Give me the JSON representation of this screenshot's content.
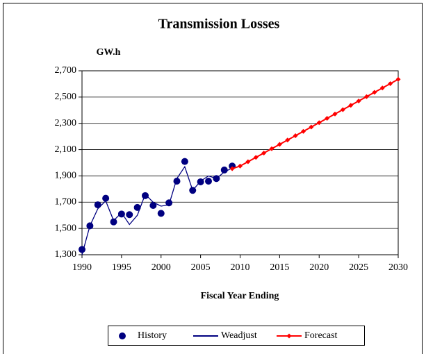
{
  "chart_data": {
    "type": "line",
    "title": "Transmission Losses",
    "y_label": "GW.h",
    "x_label": "Fiscal Year Ending",
    "xlim": [
      1990,
      2030
    ],
    "xticks": [
      1990,
      1995,
      2000,
      2005,
      2010,
      2015,
      2020,
      2025,
      2030
    ],
    "ylim": [
      1300,
      2700
    ],
    "yticks": [
      {
        "value": 1300,
        "label": "1,300"
      },
      {
        "value": 1500,
        "label": "1,500"
      },
      {
        "value": 1700,
        "label": "1,700"
      },
      {
        "value": 1900,
        "label": "1,900"
      },
      {
        "value": 2100,
        "label": "2,100"
      },
      {
        "value": 2300,
        "label": "2,300"
      },
      {
        "value": 2500,
        "label": "2,500"
      },
      {
        "value": 2700,
        "label": "2,700"
      }
    ],
    "grid": true,
    "legend": "bottom",
    "series": [
      {
        "name": "History",
        "color": "#000080",
        "line": false,
        "marker": "circle",
        "x": [
          1990,
          1991,
          1992,
          1993,
          1994,
          1995,
          1996,
          1997,
          1998,
          1999,
          2000,
          2001,
          2002,
          2003,
          2004,
          2005,
          2006,
          2007,
          2008,
          2009
        ],
        "values": [
          1340,
          1520,
          1680,
          1730,
          1550,
          1610,
          1605,
          1660,
          1750,
          1675,
          1615,
          1695,
          1860,
          2010,
          1790,
          1855,
          1860,
          1880,
          1945,
          1975
        ]
      },
      {
        "name": "Weadjust",
        "color": "#000080",
        "line": true,
        "marker": "none",
        "x": [
          1990,
          1991,
          1992,
          1993,
          1994,
          1995,
          1996,
          1997,
          1998,
          1999,
          2000,
          2001,
          2002,
          2003,
          2004,
          2005,
          2006,
          2007,
          2008,
          2009
        ],
        "values": [
          1300,
          1520,
          1650,
          1710,
          1560,
          1620,
          1530,
          1600,
          1760,
          1700,
          1670,
          1680,
          1880,
          1970,
          1790,
          1860,
          1900,
          1880,
          1930,
          1960
        ]
      },
      {
        "name": "Forecast",
        "color": "#ff0000",
        "line": true,
        "marker": "diamond",
        "x": [
          2009,
          2010,
          2011,
          2012,
          2013,
          2014,
          2015,
          2016,
          2017,
          2018,
          2019,
          2020,
          2021,
          2022,
          2023,
          2024,
          2025,
          2026,
          2027,
          2028,
          2029,
          2030
        ],
        "values": [
          1955,
          1975,
          2008,
          2041,
          2074,
          2107,
          2140,
          2173,
          2206,
          2239,
          2272,
          2305,
          2338,
          2371,
          2404,
          2437,
          2470,
          2503,
          2536,
          2569,
          2602,
          2635
        ]
      }
    ]
  }
}
